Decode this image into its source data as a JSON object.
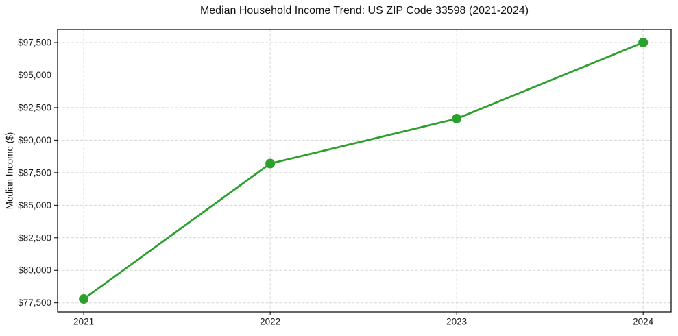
{
  "chart_data": {
    "type": "line",
    "title": "Median Household Income Trend: US ZIP Code 33598 (2021-2024)",
    "xlabel": "",
    "ylabel": "Median Income ($)",
    "x": [
      2021,
      2022,
      2023,
      2024
    ],
    "series": [
      {
        "name": "Median Household Income",
        "values": [
          77800,
          88200,
          91650,
          97500
        ],
        "color": "#2ca02c",
        "marker": "circle"
      }
    ],
    "xticks": {
      "values": [
        2021,
        2022,
        2023,
        2024
      ],
      "labels": [
        "2021",
        "2022",
        "2023",
        "2024"
      ]
    },
    "yticks": {
      "values": [
        77500,
        80000,
        82500,
        85000,
        87500,
        90000,
        92500,
        95000,
        97500
      ],
      "labels": [
        "$77,500",
        "$80,000",
        "$82,500",
        "$85,000",
        "$87,500",
        "$90,000",
        "$92,500",
        "$95,000",
        "$97,500"
      ]
    },
    "xlim": [
      2020.86,
      2024.15
    ],
    "ylim": [
      76800,
      98500
    ],
    "grid": true,
    "grid_style": "dashed",
    "legend": "none",
    "colors": {
      "line": "#2ca02c",
      "grid": "#d6d6d6",
      "spine": "#000000",
      "text": "#1a1a1a",
      "background": "#ffffff"
    }
  }
}
